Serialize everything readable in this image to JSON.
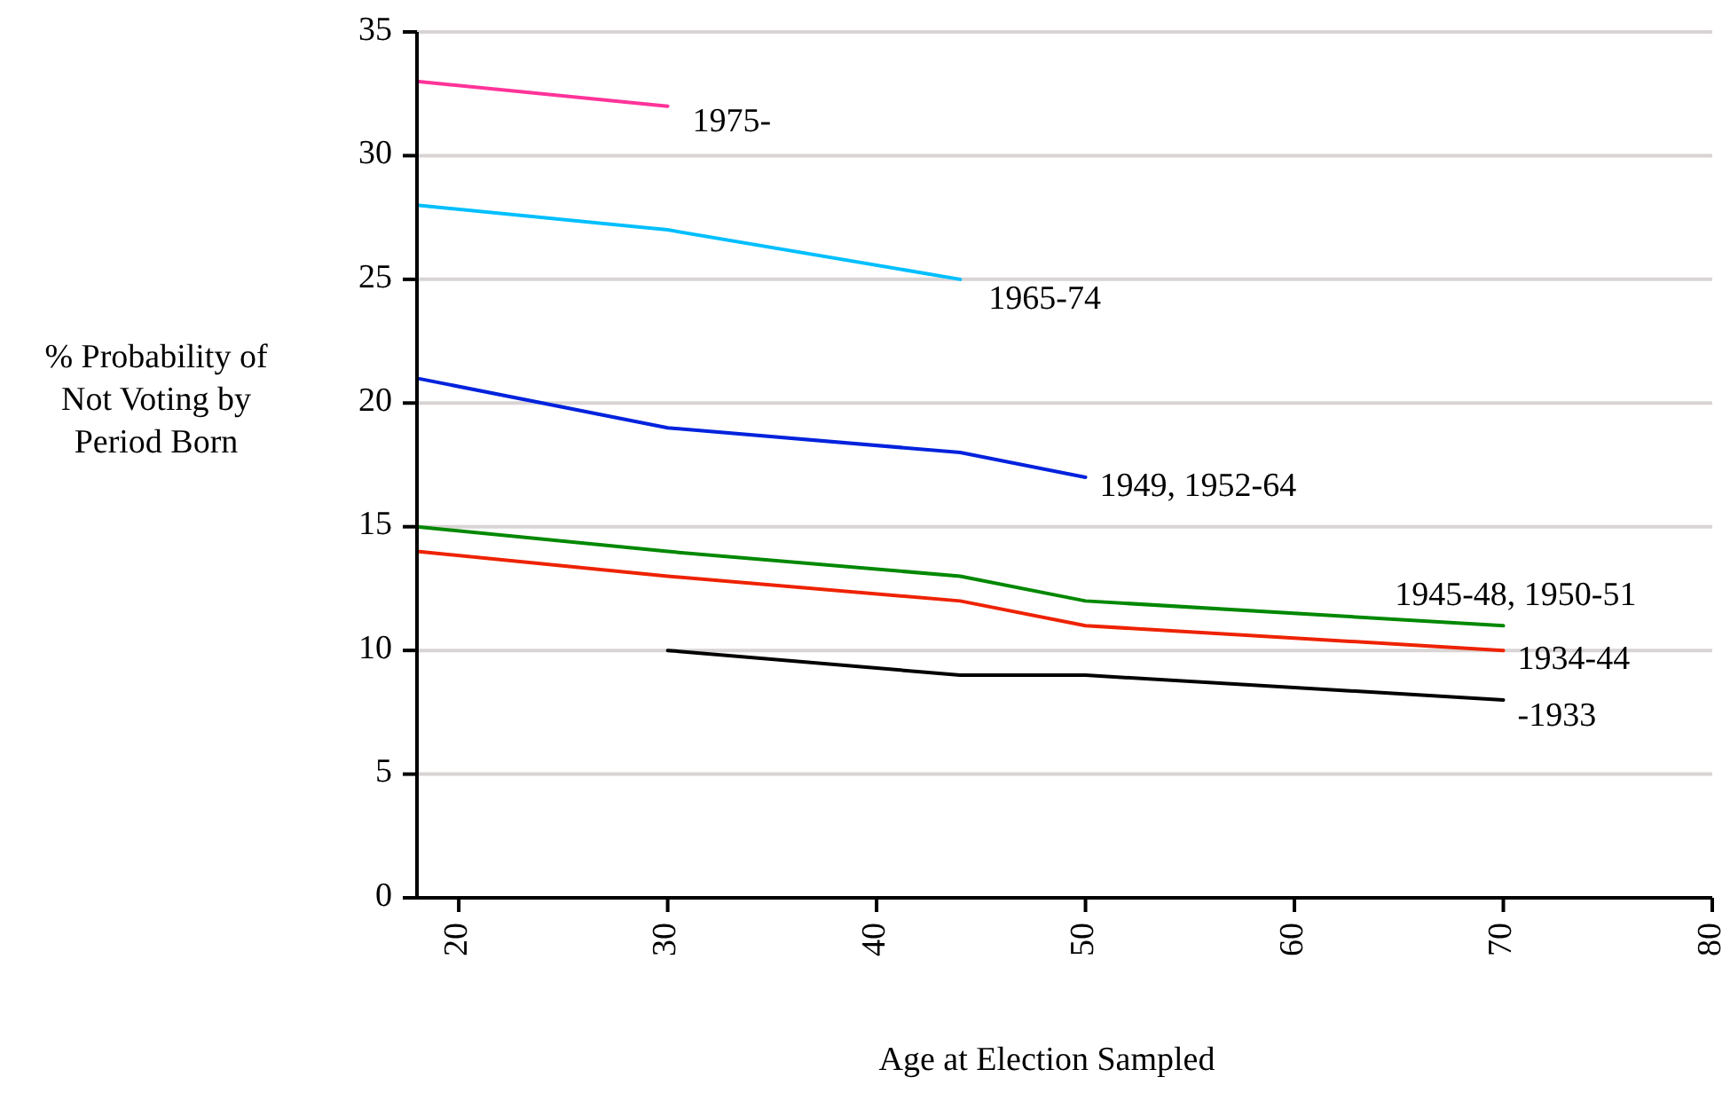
{
  "chart_data": {
    "type": "line",
    "xlabel": "Age at Election Sampled",
    "ylabel": "% Probability of Not Voting by Period Born",
    "xlim": [
      18,
      80
    ],
    "xticks": [
      20,
      30,
      40,
      50,
      60,
      70,
      80
    ],
    "ylim": [
      0,
      35
    ],
    "yticks": [
      0,
      5,
      10,
      15,
      20,
      25,
      30,
      35
    ],
    "grid": "y",
    "legend": false,
    "marker": "none",
    "line_style": "solid",
    "series": [
      {
        "name": "1975-",
        "color": "#ff3399",
        "x": [
          18,
          30
        ],
        "values": [
          33,
          32
        ]
      },
      {
        "name": "1965-74",
        "color": "#00bfff",
        "x": [
          18,
          30,
          44
        ],
        "values": [
          28,
          27,
          25
        ]
      },
      {
        "name": "1949, 1952-64",
        "color": "#0022dd",
        "x": [
          18,
          30,
          44,
          50
        ],
        "values": [
          21,
          19,
          18,
          17
        ]
      },
      {
        "name": "1945-48, 1950-51",
        "color": "#008800",
        "x": [
          18,
          30,
          44,
          50,
          70
        ],
        "values": [
          15,
          14,
          13,
          12,
          11
        ]
      },
      {
        "name": "1934-44",
        "color": "#ee2200",
        "x": [
          18,
          30,
          44,
          50,
          70
        ],
        "values": [
          14,
          13,
          12,
          11,
          10
        ]
      },
      {
        "name": "-1933",
        "color": "#000000",
        "x": [
          30,
          44,
          50,
          70
        ],
        "values": [
          10,
          9,
          9,
          8
        ]
      }
    ]
  }
}
